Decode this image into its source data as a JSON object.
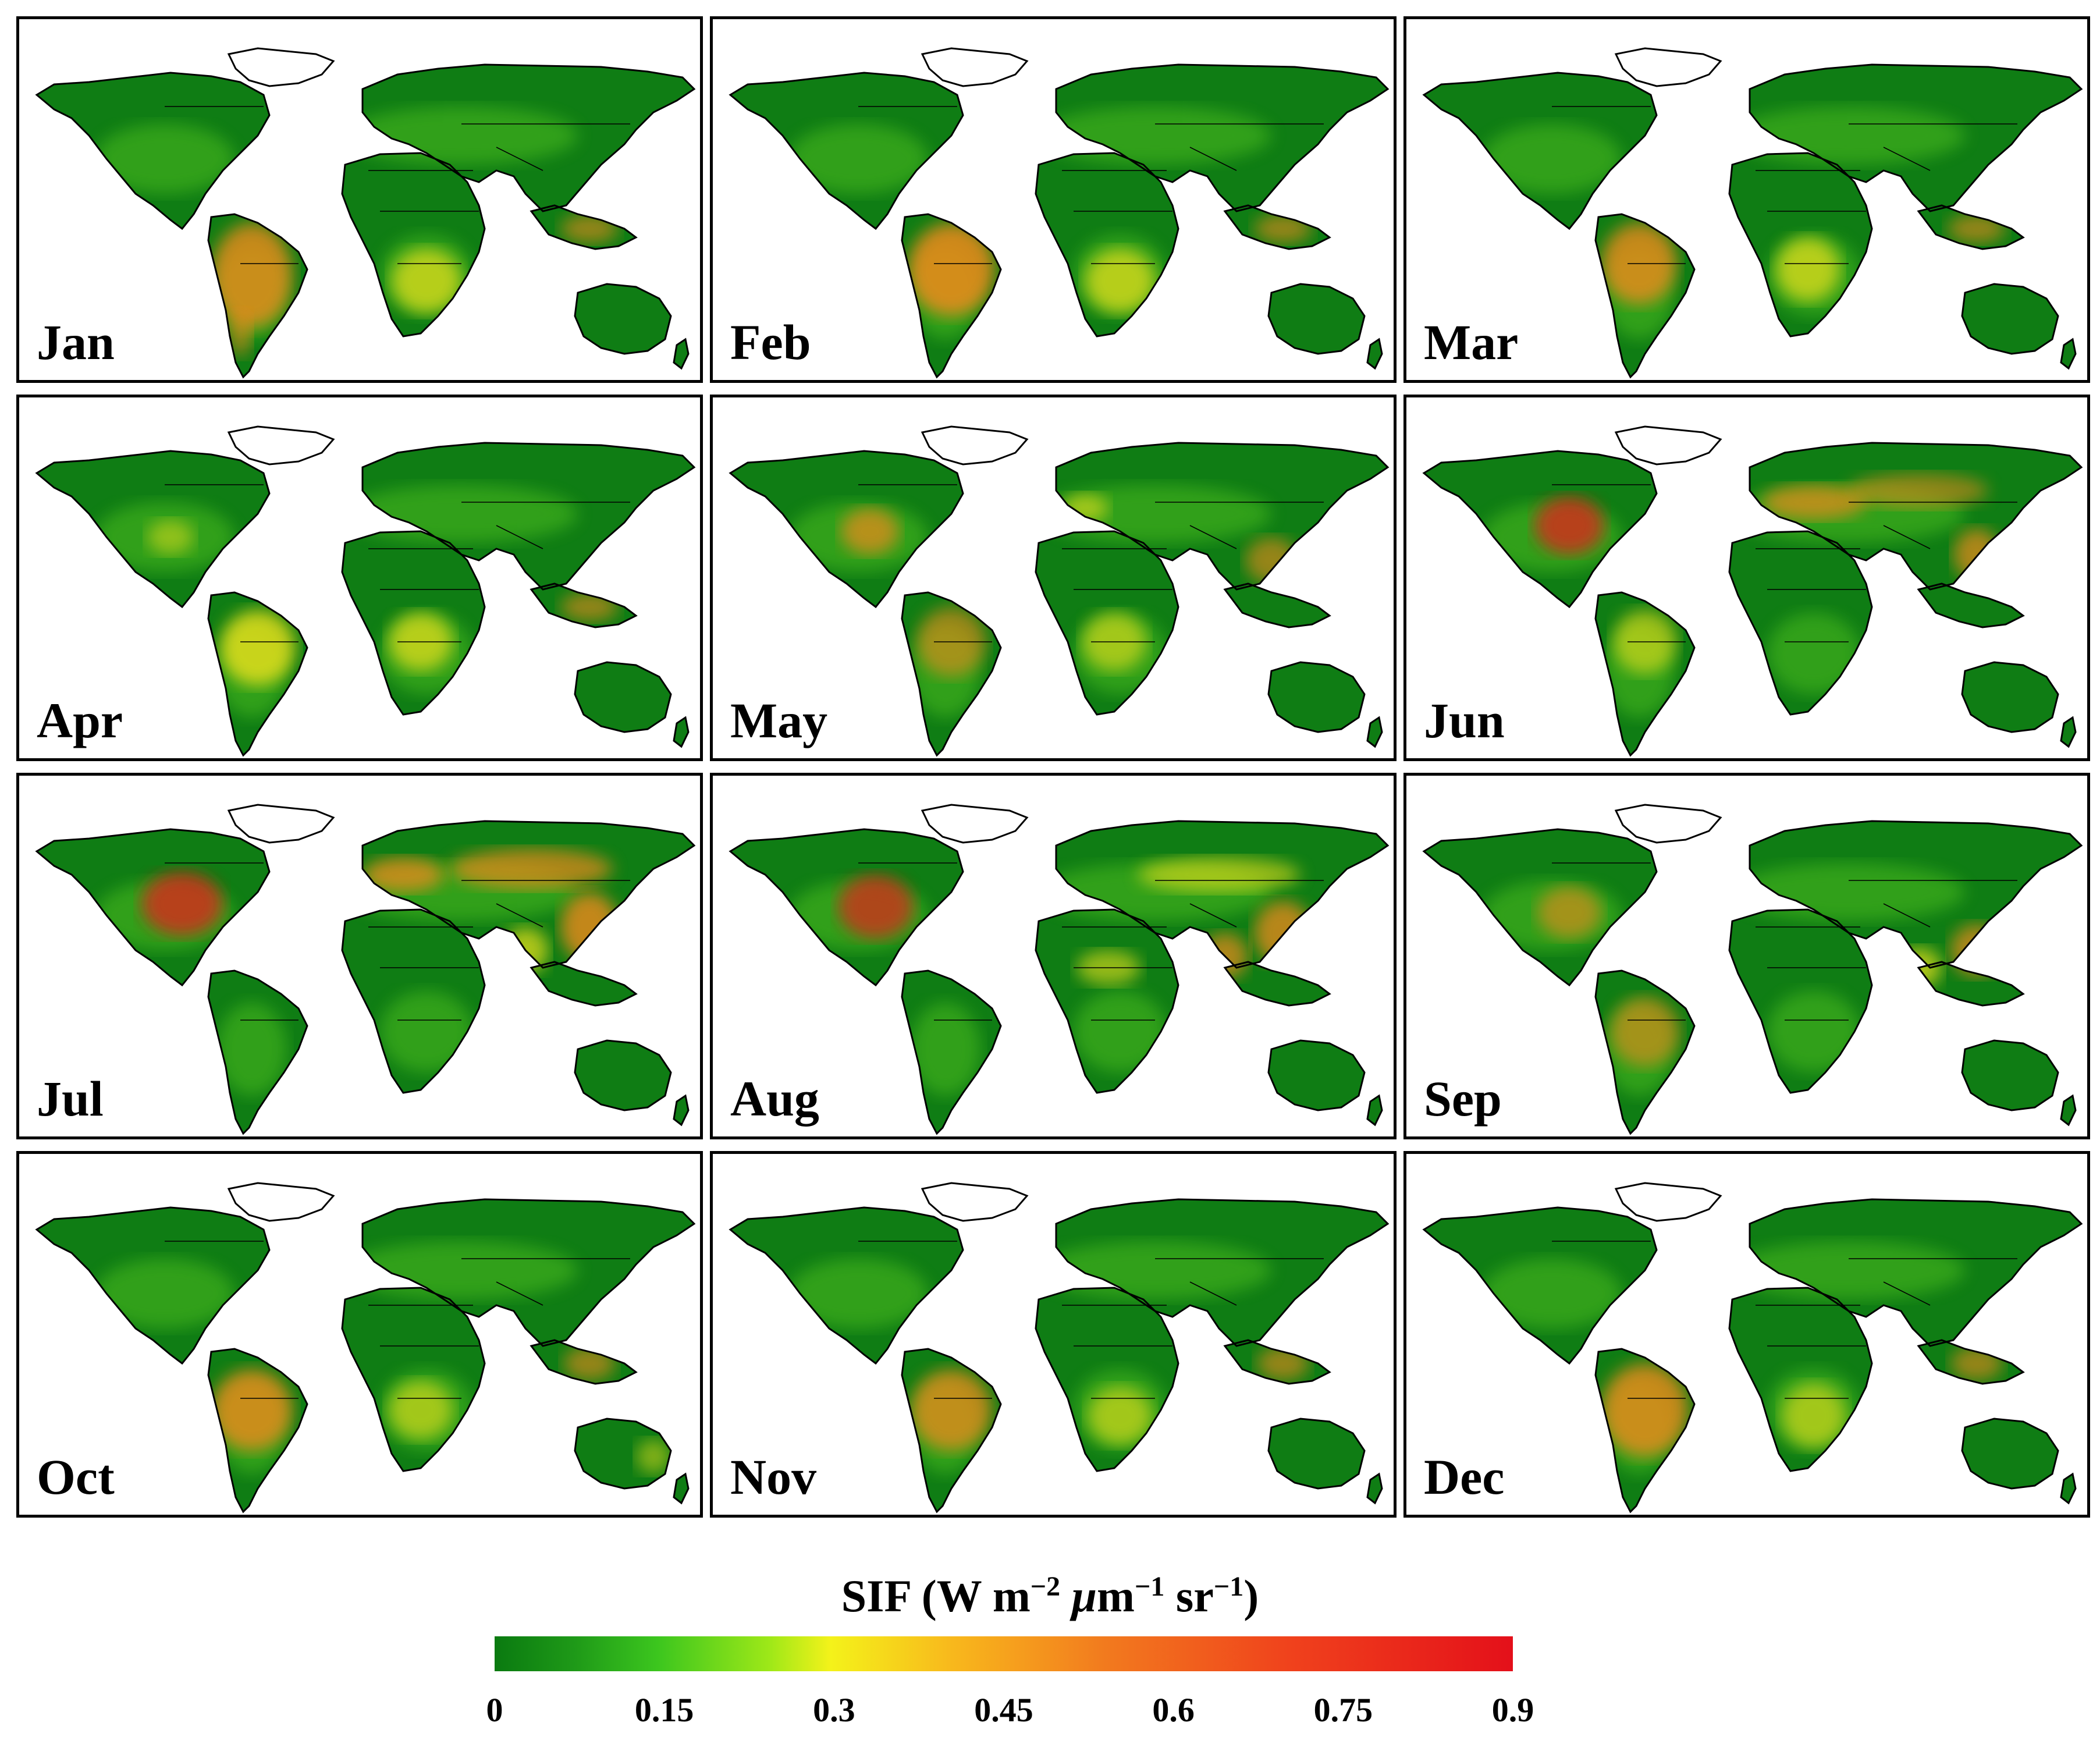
{
  "figure": {
    "panels": [
      {
        "month": "Jan"
      },
      {
        "month": "Feb"
      },
      {
        "month": "Mar"
      },
      {
        "month": "Apr"
      },
      {
        "month": "May"
      },
      {
        "month": "Jun"
      },
      {
        "month": "Jul"
      },
      {
        "month": "Aug"
      },
      {
        "month": "Sep"
      },
      {
        "month": "Oct"
      },
      {
        "month": "Nov"
      },
      {
        "month": "Dec"
      }
    ],
    "colors": {
      "land_low": "#0f7d14",
      "land_mid": "#5ccc22",
      "yellow": "#efe21c",
      "orange": "#f08a1e",
      "red": "#e4201a",
      "border": "#000000"
    }
  },
  "legend": {
    "title_prefix": "SIF (W m",
    "sup1": "−2",
    "mu": "μ",
    "unit_m": "m",
    "sup2": "−1",
    "unit_sr": " sr",
    "sup3": "−1",
    "title_suffix": ")",
    "ticks": [
      "0",
      "0.15",
      "0.3",
      "0.45",
      "0.6",
      "0.75",
      "0.9"
    ],
    "range": [
      0,
      0.9
    ]
  }
}
